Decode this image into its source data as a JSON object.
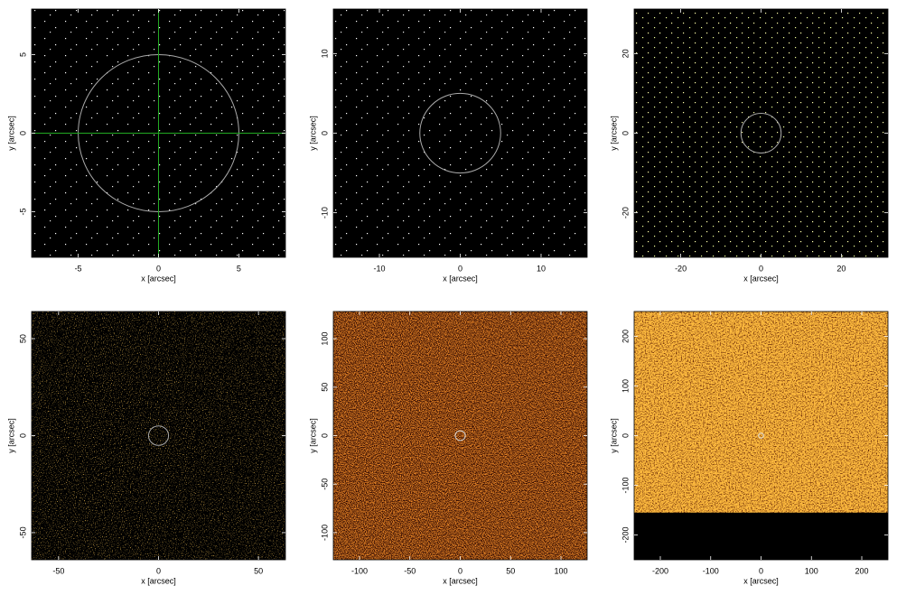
{
  "chart_data": [
    {
      "type": "image",
      "xlabel": "x [arcsec]",
      "ylabel": "y [arcsec]",
      "xlim": [
        -7.9,
        7.9
      ],
      "ylim": [
        -7.9,
        7.9
      ],
      "xticks": [
        -5,
        0,
        5
      ],
      "yticks": [
        -5,
        0,
        5
      ],
      "region": {
        "x": 0,
        "y": 0,
        "r": 5,
        "color": "#aaaaaa"
      },
      "crosshair": {
        "x": 0,
        "y": 0,
        "color": "#22aa22"
      }
    },
    {
      "type": "image",
      "xlabel": "x [arcsec]",
      "ylabel": "y [arcsec]",
      "xlim": [
        -15.7,
        15.7
      ],
      "ylim": [
        -15.6,
        15.6
      ],
      "xticks": [
        -10,
        0,
        10
      ],
      "yticks": [
        -10,
        0,
        10
      ],
      "region": {
        "x": 0,
        "y": 0,
        "r": 5,
        "color": "#aaaaaa"
      }
    },
    {
      "type": "image",
      "xlabel": "x [arcsec]",
      "ylabel": "y [arcsec]",
      "xlim": [
        -31.6,
        31.6
      ],
      "ylim": [
        -31.2,
        31.2
      ],
      "xticks": [
        -20,
        0,
        20
      ],
      "yticks": [
        -20,
        0,
        20
      ],
      "region": {
        "x": 0,
        "y": 0,
        "r": 5,
        "color": "#aaaaaa"
      }
    },
    {
      "type": "image",
      "xlabel": "x [arcsec]",
      "ylabel": "y [arcsec]",
      "xlim": [
        -63.5,
        63.5
      ],
      "ylim": [
        -64,
        64
      ],
      "xticks": [
        -50,
        0,
        50
      ],
      "yticks": [
        -50,
        0,
        50
      ],
      "region": {
        "x": 0,
        "y": 0,
        "r": 5,
        "color": "#aaaaaa"
      }
    },
    {
      "type": "image",
      "xlabel": "x [arcsec]",
      "ylabel": "y [arcsec]",
      "xlim": [
        -126,
        126
      ],
      "ylim": [
        -128,
        128
      ],
      "xticks": [
        -100,
        -50,
        0,
        50,
        100
      ],
      "yticks": [
        -100,
        -50,
        0,
        50,
        100
      ],
      "region": {
        "x": 0,
        "y": 0,
        "r": 5,
        "color": "#dddddd"
      }
    },
    {
      "type": "image",
      "xlabel": "x [arcsec]",
      "ylabel": "y [arcsec]",
      "xlim": [
        -252,
        252
      ],
      "ylim": [
        -250,
        250
      ],
      "xticks": [
        -200,
        -100,
        0,
        100,
        200
      ],
      "yticks": [
        -200,
        -100,
        0,
        100,
        200
      ],
      "region": {
        "x": 0,
        "y": 0,
        "r": 5,
        "color": "#dddddd"
      }
    }
  ]
}
